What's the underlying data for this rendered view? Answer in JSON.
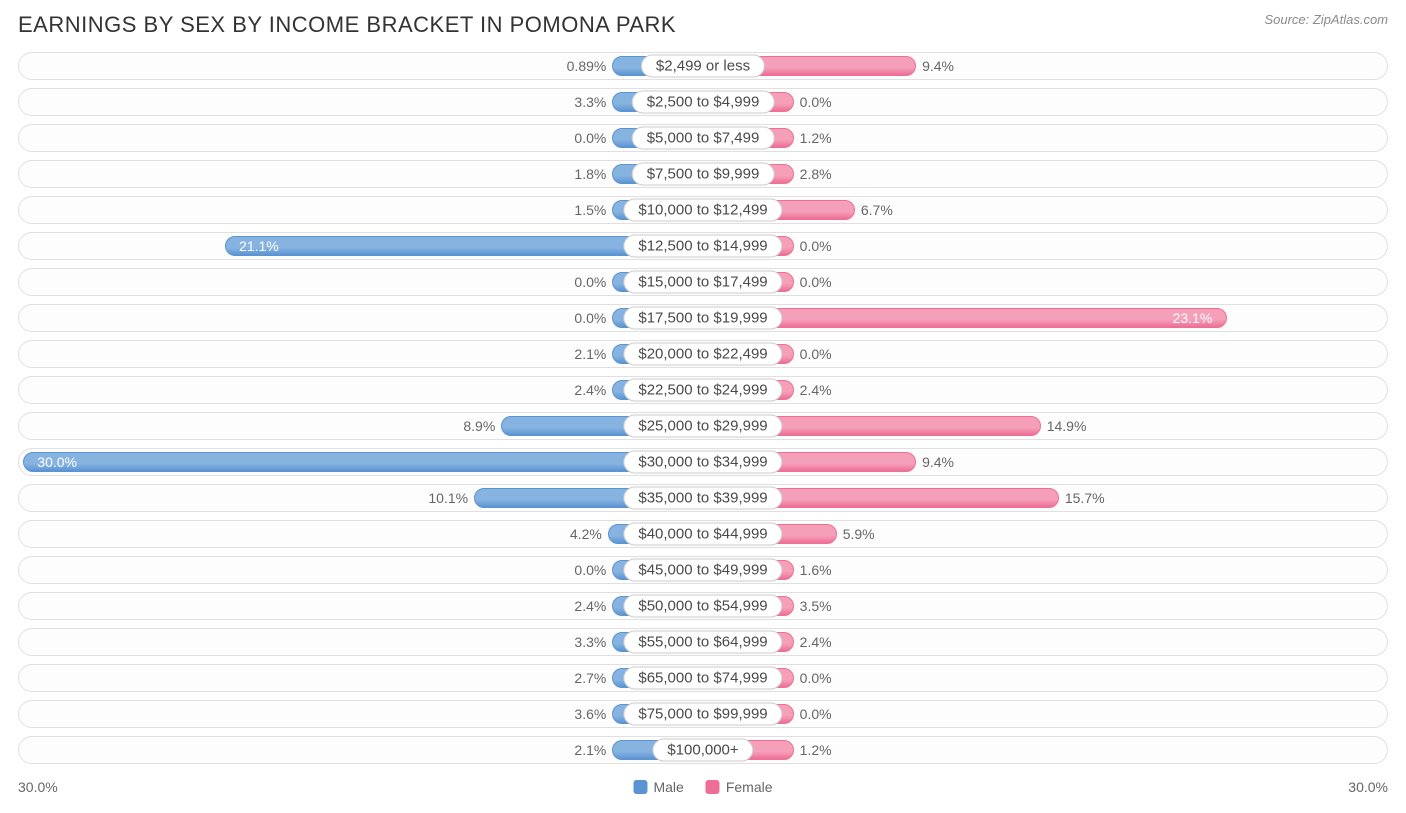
{
  "title": "EARNINGS BY SEX BY INCOME BRACKET IN POMONA PARK",
  "source": "Source: ZipAtlas.com",
  "chart": {
    "type": "diverging-bar",
    "axis_max_pct": 30.0,
    "axis_label_left": "30.0%",
    "axis_label_right": "30.0%",
    "min_bar_pct": 4.0,
    "colors": {
      "male_fill": "#87b3e0",
      "male_edge": "#5a94d4",
      "female_fill": "#f59fb9",
      "female_edge": "#ee6e96",
      "row_border": "#e0e0e0",
      "row_bg": "#fdfdfd",
      "pill_border": "#cccccc",
      "text": "#666666",
      "title_text": "#333333",
      "bg": "#ffffff"
    },
    "legend": [
      {
        "label": "Male",
        "swatch": "#5a94d4"
      },
      {
        "label": "Female",
        "swatch": "#ee6e96"
      }
    ],
    "label_fontsize": 14,
    "cat_fontsize": 15,
    "title_fontsize": 22,
    "rows": [
      {
        "category": "$2,499 or less",
        "male": 0.89,
        "male_label": "0.89%",
        "female": 9.4,
        "female_label": "9.4%"
      },
      {
        "category": "$2,500 to $4,999",
        "male": 3.3,
        "male_label": "3.3%",
        "female": 0.0,
        "female_label": "0.0%"
      },
      {
        "category": "$5,000 to $7,499",
        "male": 0.0,
        "male_label": "0.0%",
        "female": 1.2,
        "female_label": "1.2%"
      },
      {
        "category": "$7,500 to $9,999",
        "male": 1.8,
        "male_label": "1.8%",
        "female": 2.8,
        "female_label": "2.8%"
      },
      {
        "category": "$10,000 to $12,499",
        "male": 1.5,
        "male_label": "1.5%",
        "female": 6.7,
        "female_label": "6.7%"
      },
      {
        "category": "$12,500 to $14,999",
        "male": 21.1,
        "male_label": "21.1%",
        "female": 0.0,
        "female_label": "0.0%"
      },
      {
        "category": "$15,000 to $17,499",
        "male": 0.0,
        "male_label": "0.0%",
        "female": 0.0,
        "female_label": "0.0%"
      },
      {
        "category": "$17,500 to $19,999",
        "male": 0.0,
        "male_label": "0.0%",
        "female": 23.1,
        "female_label": "23.1%"
      },
      {
        "category": "$20,000 to $22,499",
        "male": 2.1,
        "male_label": "2.1%",
        "female": 0.0,
        "female_label": "0.0%"
      },
      {
        "category": "$22,500 to $24,999",
        "male": 2.4,
        "male_label": "2.4%",
        "female": 2.4,
        "female_label": "2.4%"
      },
      {
        "category": "$25,000 to $29,999",
        "male": 8.9,
        "male_label": "8.9%",
        "female": 14.9,
        "female_label": "14.9%"
      },
      {
        "category": "$30,000 to $34,999",
        "male": 30.0,
        "male_label": "30.0%",
        "female": 9.4,
        "female_label": "9.4%"
      },
      {
        "category": "$35,000 to $39,999",
        "male": 10.1,
        "male_label": "10.1%",
        "female": 15.7,
        "female_label": "15.7%"
      },
      {
        "category": "$40,000 to $44,999",
        "male": 4.2,
        "male_label": "4.2%",
        "female": 5.9,
        "female_label": "5.9%"
      },
      {
        "category": "$45,000 to $49,999",
        "male": 0.0,
        "male_label": "0.0%",
        "female": 1.6,
        "female_label": "1.6%"
      },
      {
        "category": "$50,000 to $54,999",
        "male": 2.4,
        "male_label": "2.4%",
        "female": 3.5,
        "female_label": "3.5%"
      },
      {
        "category": "$55,000 to $64,999",
        "male": 3.3,
        "male_label": "3.3%",
        "female": 2.4,
        "female_label": "2.4%"
      },
      {
        "category": "$65,000 to $74,999",
        "male": 2.7,
        "male_label": "2.7%",
        "female": 0.0,
        "female_label": "0.0%"
      },
      {
        "category": "$75,000 to $99,999",
        "male": 3.6,
        "male_label": "3.6%",
        "female": 0.0,
        "female_label": "0.0%"
      },
      {
        "category": "$100,000+",
        "male": 2.1,
        "male_label": "2.1%",
        "female": 1.2,
        "female_label": "1.2%"
      }
    ]
  }
}
